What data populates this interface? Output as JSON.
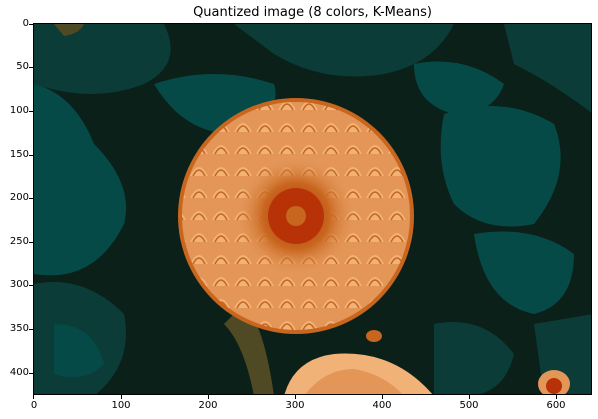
{
  "title": "Quantized image (8 colors, K-Means)",
  "x_ticks": [
    "0",
    "100",
    "200",
    "300",
    "400",
    "500",
    "600"
  ],
  "y_ticks": [
    "0",
    "50",
    "100",
    "150",
    "200",
    "250",
    "300",
    "350",
    "400"
  ],
  "palette": {
    "dark_bg": "#0b2019",
    "teal_dark": "#0b3c38",
    "teal": "#064a48",
    "olive": "#4f4a24",
    "peach_light": "#f0b276",
    "peach": "#e39658",
    "orange": "#c8661f",
    "red": "#b83208"
  },
  "image_description_tag": "dahlia-flower"
}
